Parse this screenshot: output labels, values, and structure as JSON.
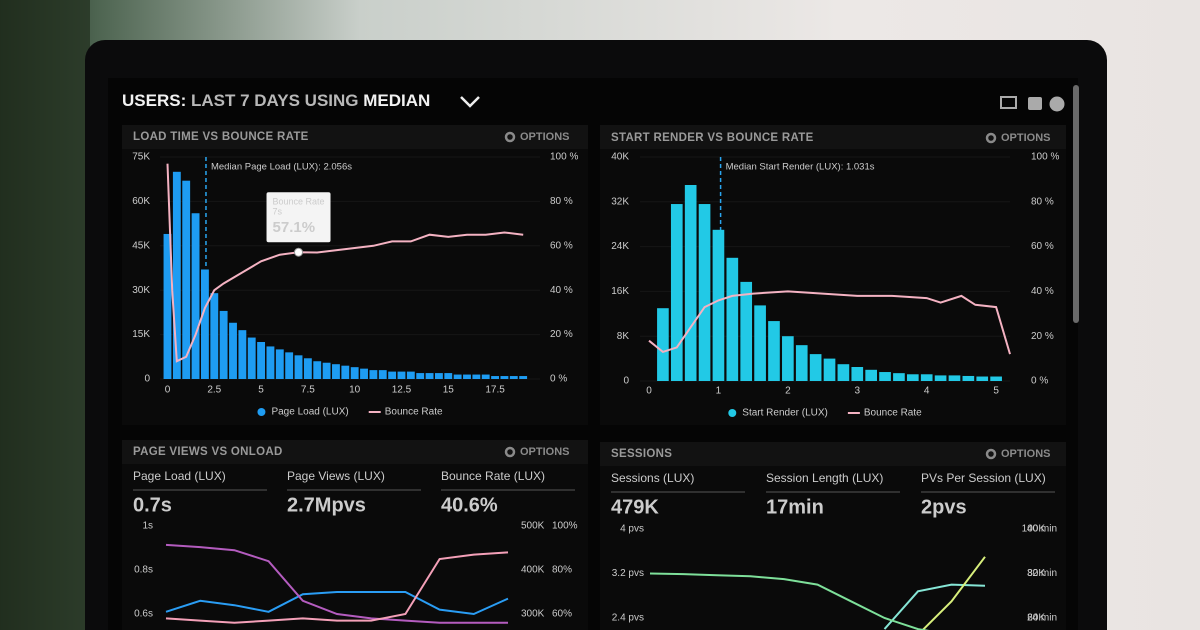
{
  "header": {
    "title_parts": [
      "USERS:",
      "LAST 7 DAYS",
      "USING",
      "MEDIAN"
    ]
  },
  "panels": [
    {
      "title": "LOAD TIME VS BOUNCE RATE",
      "options": "OPTIONS"
    },
    {
      "title": "START RENDER VS BOUNCE RATE",
      "options": "OPTIONS"
    },
    {
      "title": "PAGE VIEWS VS ONLOAD",
      "options": "OPTIONS"
    },
    {
      "title": "SESSIONS",
      "options": "OPTIONS"
    }
  ],
  "chart_data": [
    {
      "type": "bar",
      "legend": true,
      "grid": true,
      "x": [
        0,
        0.5,
        1,
        1.5,
        2,
        2.5,
        3,
        3.5,
        4,
        4.5,
        5,
        5.5,
        6,
        6.5,
        7,
        7.5,
        8,
        8.5,
        9,
        9.5,
        10,
        10.5,
        11,
        11.5,
        12,
        12.5,
        13,
        13.5,
        14,
        14.5,
        15,
        15.5,
        16,
        16.5,
        17,
        17.5,
        18,
        18.5,
        19
      ],
      "series": [
        {
          "name": "Page Load (LUX)",
          "color": "#1e9cf2",
          "values": [
            49000,
            70000,
            67000,
            56000,
            37000,
            29000,
            23000,
            19000,
            16500,
            14000,
            12500,
            11000,
            10000,
            9000,
            8000,
            7000,
            6000,
            5500,
            5000,
            4500,
            4000,
            3500,
            3000,
            3000,
            2500,
            2500,
            2500,
            2000,
            2000,
            2000,
            2000,
            1500,
            1500,
            1500,
            1500,
            1000,
            1000,
            1000,
            1000
          ]
        },
        {
          "name": "Bounce Rate",
          "color": "#f4b2c2",
          "type": "line",
          "axis": "y2",
          "x": [
            0,
            0.25,
            0.5,
            1,
            1.5,
            2,
            2.5,
            3,
            4,
            5,
            6,
            7,
            8,
            9,
            10,
            11,
            12,
            13,
            14,
            15,
            16,
            17,
            18,
            19
          ],
          "values": [
            97,
            40,
            8,
            10,
            20,
            32,
            40,
            43,
            48,
            53,
            56,
            57.1,
            57,
            58,
            59,
            60,
            62,
            62,
            65,
            64,
            65,
            65,
            66,
            65
          ]
        }
      ],
      "xlim": [
        -0.4,
        19.9
      ],
      "xticks": [
        0,
        2.5,
        5,
        7.5,
        10,
        12.5,
        15,
        17.5
      ],
      "ylim": [
        0,
        75000
      ],
      "yticks": [
        0,
        {
          "value": 15000,
          "label": "15K"
        },
        {
          "value": 30000,
          "label": "30K"
        },
        {
          "value": 45000,
          "label": "45K"
        },
        {
          "value": 60000,
          "label": "60K"
        },
        {
          "value": 75000,
          "label": "75K"
        }
      ],
      "y2lim": [
        0,
        100
      ],
      "y2ticks": [
        {
          "value": 0,
          "label": "0 %"
        },
        {
          "value": 20,
          "label": "20 %"
        },
        {
          "value": 40,
          "label": "40 %"
        },
        {
          "value": 60,
          "label": "60 %"
        },
        {
          "value": 80,
          "label": "80 %"
        },
        {
          "value": 100,
          "label": "100 %"
        }
      ],
      "annotations": [
        {
          "text": "Median Page Load (LUX): 2.056s",
          "x": 2.056
        }
      ],
      "tooltip": {
        "title": "Bounce Rate",
        "x_label": "7s",
        "x": 7,
        "value": 57.1,
        "value_label": "57.1%"
      }
    },
    {
      "type": "bar",
      "legend": true,
      "grid": true,
      "x": [
        0.2,
        0.4,
        0.6,
        0.8,
        1,
        1.2,
        1.4,
        1.6,
        1.8,
        2,
        2.2,
        2.4,
        2.6,
        2.8,
        3,
        3.2,
        3.4,
        3.6,
        3.8,
        4,
        4.2,
        4.4,
        4.6,
        4.8,
        5
      ],
      "series": [
        {
          "name": "Start Render (LUX)",
          "color": "#22c9e6",
          "values": [
            13000,
            31600,
            35000,
            31600,
            27000,
            22000,
            17700,
            13500,
            10700,
            8000,
            6400,
            4800,
            4000,
            3000,
            2500,
            2000,
            1600,
            1400,
            1200,
            1200,
            1000,
            1000,
            900,
            800,
            800
          ]
        },
        {
          "name": "Bounce Rate",
          "color": "#f4b2c2",
          "type": "line",
          "axis": "y2",
          "x": [
            0,
            0.2,
            0.4,
            0.6,
            0.8,
            1,
            1.2,
            1.5,
            2,
            2.5,
            3,
            3.5,
            4,
            4.2,
            4.5,
            4.7,
            5,
            5.2
          ],
          "values": [
            18,
            13,
            15,
            24,
            33,
            36,
            38,
            39,
            40,
            39,
            38,
            38,
            37,
            35,
            38,
            34,
            33,
            12
          ]
        }
      ],
      "xlim": [
        -0.13,
        5.2
      ],
      "xticks": [
        0,
        1,
        2,
        3,
        4,
        5
      ],
      "ylim": [
        0,
        40000
      ],
      "yticks": [
        0,
        {
          "value": 8000,
          "label": "8K"
        },
        {
          "value": 16000,
          "label": "16K"
        },
        {
          "value": 24000,
          "label": "24K"
        },
        {
          "value": 32000,
          "label": "32K"
        },
        {
          "value": 40000,
          "label": "40K"
        }
      ],
      "y2lim": [
        0,
        100
      ],
      "y2ticks": [
        {
          "value": 0,
          "label": "0 %"
        },
        {
          "value": 20,
          "label": "20 %"
        },
        {
          "value": 40,
          "label": "40 %"
        },
        {
          "value": 60,
          "label": "60 %"
        },
        {
          "value": 80,
          "label": "80 %"
        },
        {
          "value": 100,
          "label": "100 %"
        }
      ],
      "annotations": [
        {
          "text": "Median Start Render (LUX): 1.031s",
          "x": 1.031
        }
      ]
    },
    {
      "type": "line",
      "categories": [
        null,
        null,
        null,
        null,
        null,
        null,
        null,
        null,
        null,
        null,
        null
      ],
      "series": [
        {
          "name": "Page Load (LUX)",
          "summary": "0.7s",
          "color": "#2a9df4",
          "axis": "y",
          "values": [
            0.61,
            0.66,
            0.64,
            0.61,
            0.69,
            0.7,
            0.7,
            0.7,
            0.62,
            0.6,
            0.67
          ]
        },
        {
          "name": "Page Views (LUX)",
          "summary": "2.7Mpvs",
          "color": "#b45cbf",
          "axis": "y2",
          "values": [
            457000,
            452000,
            445000,
            420000,
            330000,
            300000,
            290000,
            285000,
            280000,
            280000,
            280000
          ]
        },
        {
          "name": "Bounce Rate (LUX)",
          "summary": "40.6%",
          "color": "#f4a0b8",
          "axis": "y3",
          "values": [
            58,
            57,
            56,
            57,
            58,
            57,
            57,
            60,
            85,
            87,
            88
          ]
        }
      ],
      "ylim": [
        0.6,
        1.0
      ],
      "yticks": [
        {
          "value": 1,
          "label": "1s"
        },
        {
          "value": 0.8,
          "label": "0.8s"
        },
        {
          "value": 0.6,
          "label": "0.6s"
        }
      ],
      "y2lim": [
        300000,
        500000
      ],
      "y2ticks": [
        {
          "value": 500000,
          "label": "500K"
        },
        {
          "value": 400000,
          "label": "400K"
        },
        {
          "value": 300000,
          "label": "300K"
        }
      ],
      "y3lim": [
        60,
        100
      ],
      "y3ticks": [
        {
          "value": 100,
          "label": "100%"
        },
        {
          "value": 80,
          "label": "80%"
        },
        {
          "value": 60,
          "label": "60%"
        }
      ]
    },
    {
      "type": "line",
      "categories": [
        null,
        null,
        null,
        null,
        null,
        null,
        null,
        null,
        null,
        null,
        null
      ],
      "series": [
        {
          "name": "Sessions (LUX)",
          "summary": "479K",
          "color": "#86e6d6",
          "axis": "y2",
          "values": [
            null,
            null,
            null,
            null,
            null,
            null,
            null,
            55000,
            72000,
            75000,
            74500
          ]
        },
        {
          "name": "Session Length (LUX)",
          "summary": "17min",
          "color": "#d8ef7c",
          "axis": "y3",
          "values": [
            null,
            null,
            null,
            null,
            null,
            null,
            null,
            null,
            21,
            27,
            35
          ]
        },
        {
          "name": "PVs Per Session (LUX)",
          "summary": "2pvs",
          "color": "#7ee09a",
          "axis": "y",
          "values": [
            3.2,
            3.19,
            3.17,
            3.15,
            3.1,
            3.0,
            2.7,
            2.4,
            2.2,
            2.1,
            2.0
          ]
        }
      ],
      "ylim": [
        2.4,
        4
      ],
      "yticks": [
        {
          "value": 4,
          "label": "4 pvs"
        },
        {
          "value": 3.2,
          "label": "3.2 pvs"
        },
        {
          "value": 2.4,
          "label": "2.4 pvs"
        }
      ],
      "y2lim": [
        60000,
        100000
      ],
      "y2ticks": [
        {
          "value": 100000,
          "label": "100K"
        },
        {
          "value": 80000,
          "label": "80K"
        },
        {
          "value": 60000,
          "label": "60K"
        }
      ],
      "y3lim": [
        24,
        40
      ],
      "y3ticks": [
        {
          "value": 40,
          "label": "40 min"
        },
        {
          "value": 32,
          "label": "32 min"
        },
        {
          "value": 24,
          "label": "24 min"
        }
      ]
    }
  ]
}
